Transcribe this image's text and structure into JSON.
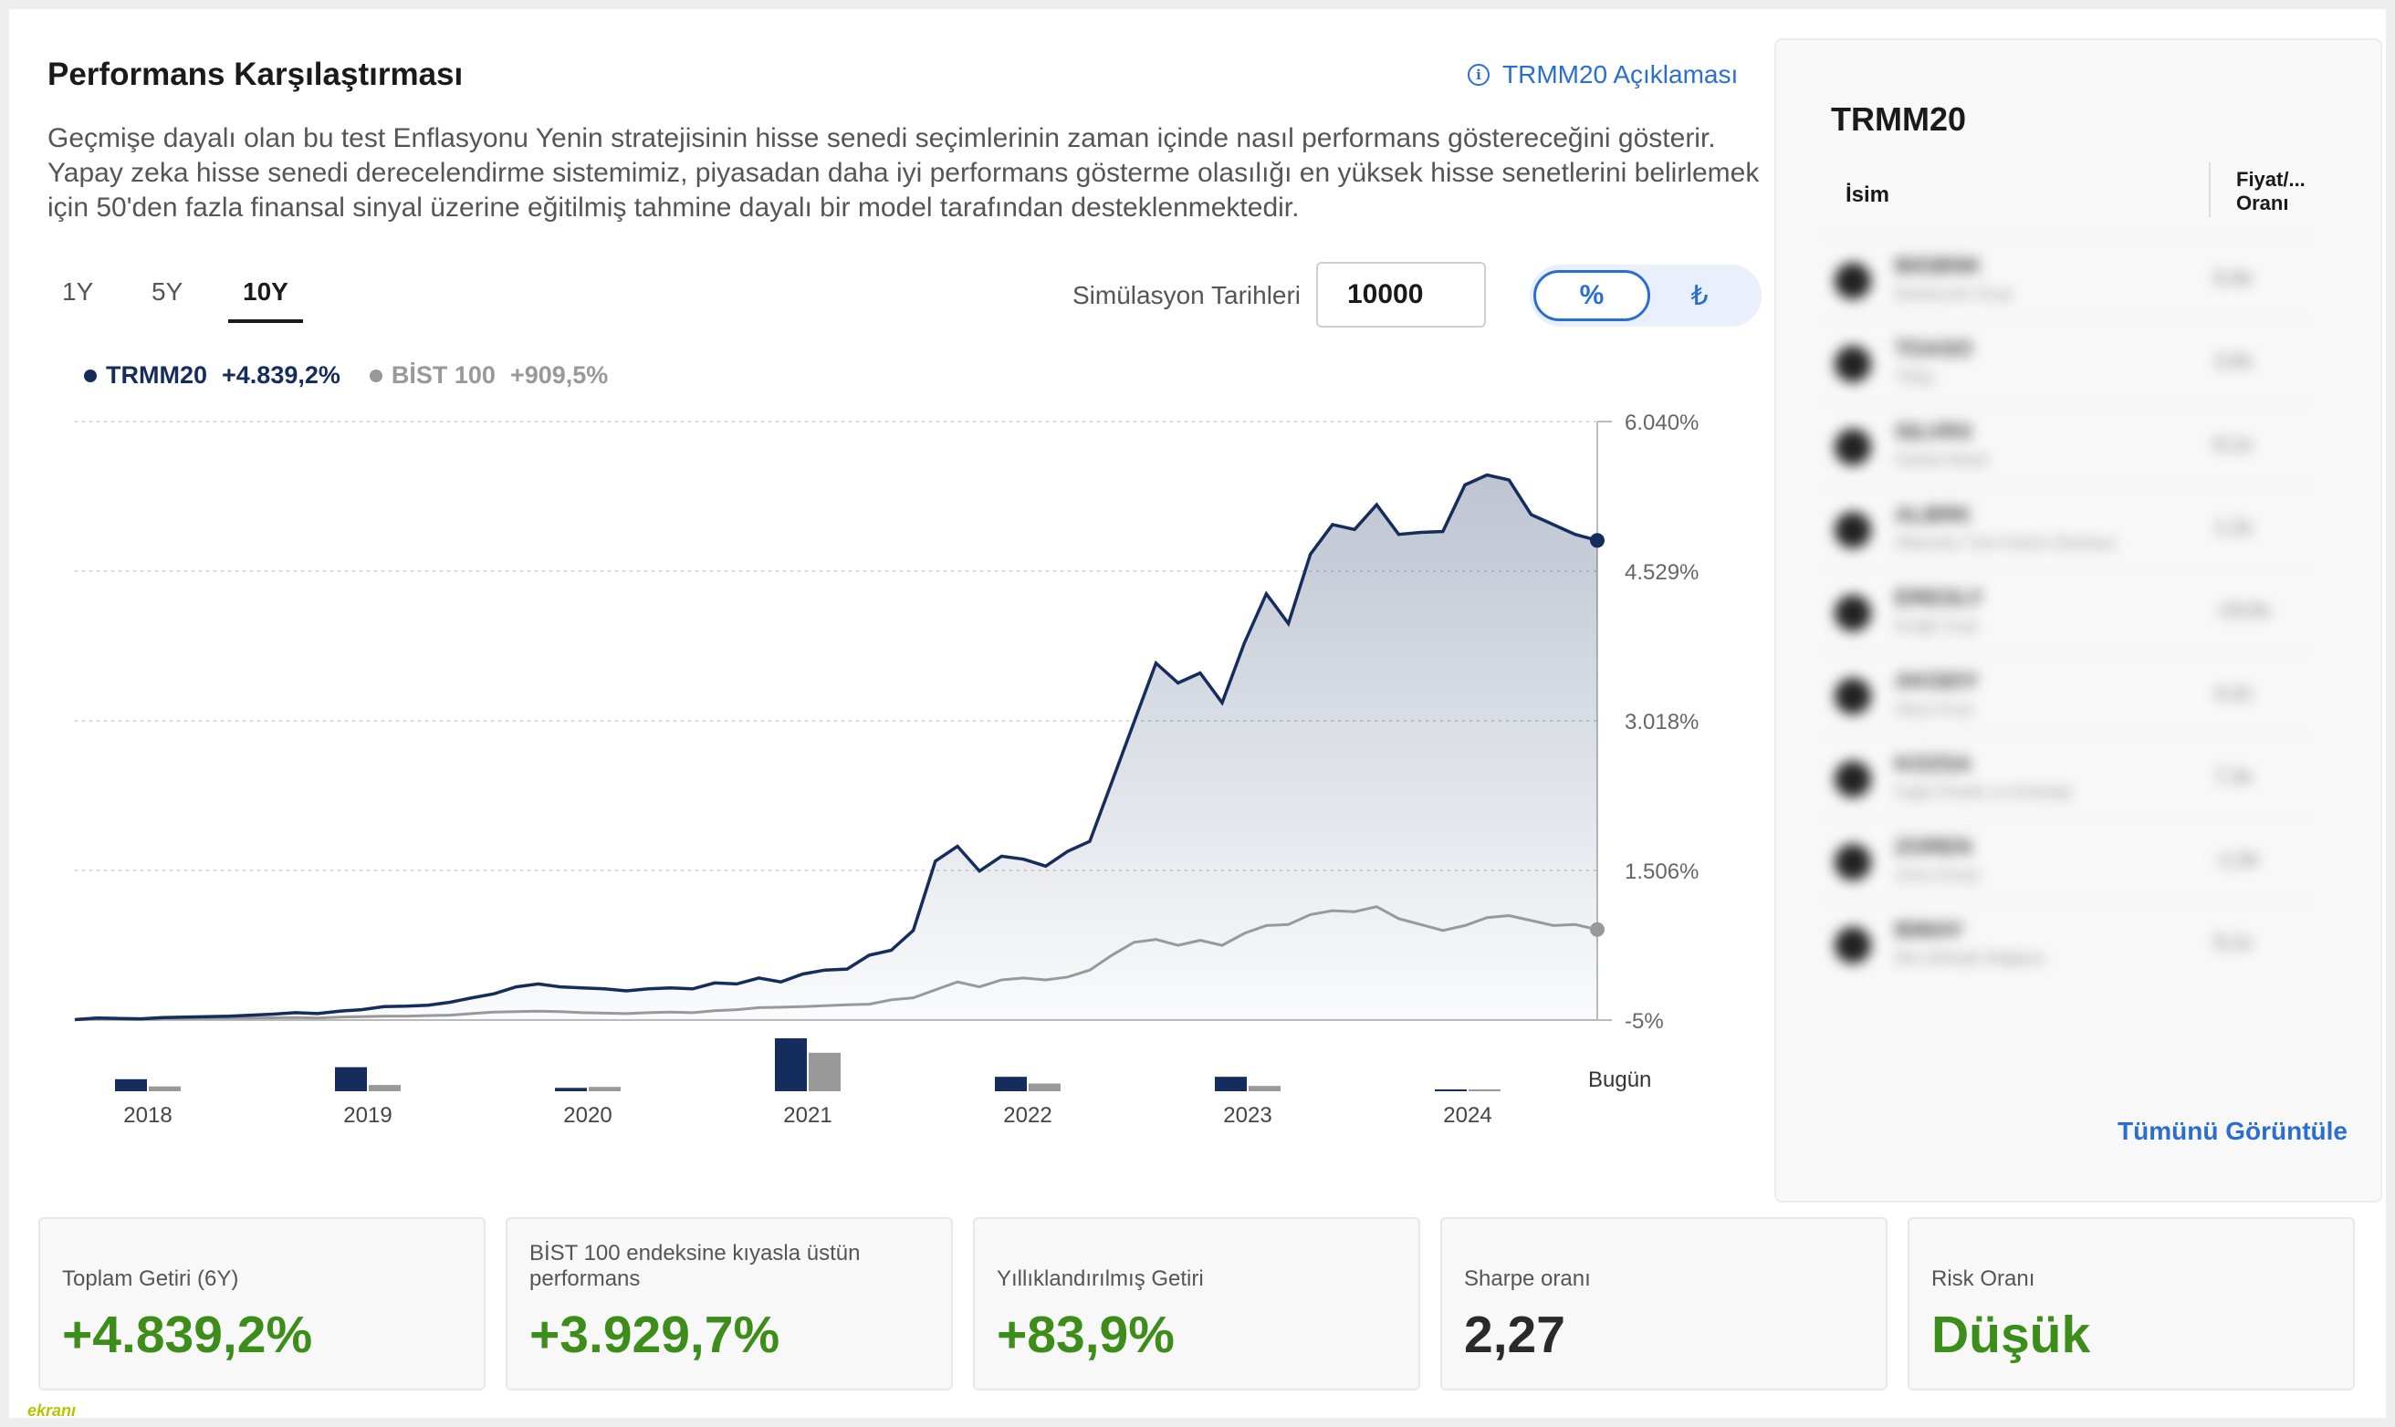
{
  "header": {
    "title": "Performans Karşılaştırması",
    "info_link": "TRMM20 Açıklaması",
    "description": "Geçmişe dayalı olan bu test Enflasyonu Yenin stratejisinin hisse senedi seçimlerinin zaman içinde nasıl performans göstereceğini gösterir. Yapay zeka hisse senedi derecelendirme sistemimiz, piyasadan daha iyi performans gösterme olasılığı en yüksek hisse senetlerini belirlemek için 50'den fazla finansal sinyal üzerine eğitilmiş tahmine dayalı bir model tarafından desteklenmektedir."
  },
  "controls": {
    "tabs": [
      "1Y",
      "5Y",
      "10Y"
    ],
    "active_tab": "10Y",
    "sim_label": "Simülasyon Tarihleri",
    "sim_value": "10000",
    "toggle": {
      "percent": "%",
      "lira": "₺",
      "selected": "%"
    }
  },
  "legend": {
    "series1_name": "TRMM20",
    "series1_value": "+4.839,2%",
    "series2_name": "BİST 100",
    "series2_value": "+909,5%"
  },
  "chart_data": {
    "type": "line",
    "y_tick_labels": [
      "6.040%",
      "4.529%",
      "3.018%",
      "1.506%",
      "-5%"
    ],
    "ylim": [
      -5,
      6040
    ],
    "x_end_label": "Bugün",
    "grid": true,
    "series": [
      {
        "name": "TRMM20",
        "color": "#152d5c",
        "end_value": 4839.2,
        "values": [
          0,
          15,
          12,
          8,
          20,
          25,
          30,
          35,
          45,
          55,
          70,
          60,
          85,
          100,
          130,
          135,
          145,
          175,
          220,
          260,
          330,
          360,
          330,
          320,
          310,
          290,
          310,
          320,
          310,
          370,
          360,
          420,
          380,
          460,
          500,
          510,
          650,
          700,
          900,
          1600,
          1750,
          1500,
          1650,
          1620,
          1550,
          1700,
          1800,
          2400,
          3000,
          3600,
          3400,
          3500,
          3200,
          3800,
          4300,
          4000,
          4700,
          5000,
          4950,
          5200,
          4900,
          4920,
          4930,
          5400,
          5500,
          5450,
          5100,
          5000,
          4900,
          4839.2
        ]
      },
      {
        "name": "BİST 100",
        "color": "#999999",
        "end_value": 909.5,
        "values": [
          0,
          8,
          5,
          3,
          10,
          12,
          12,
          14,
          15,
          18,
          20,
          15,
          25,
          30,
          35,
          35,
          40,
          45,
          60,
          75,
          80,
          85,
          80,
          70,
          65,
          60,
          70,
          75,
          70,
          90,
          100,
          120,
          125,
          130,
          140,
          150,
          155,
          200,
          220,
          300,
          380,
          330,
          400,
          420,
          400,
          430,
          500,
          650,
          780,
          810,
          750,
          800,
          750,
          870,
          950,
          960,
          1060,
          1100,
          1090,
          1140,
          1020,
          960,
          900,
          950,
          1030,
          1050,
          1000,
          950,
          960,
          909.5
        ]
      }
    ],
    "yearly_bars": {
      "categories": [
        "2018",
        "2019",
        "2020",
        "2021",
        "2022",
        "2023",
        "2024"
      ],
      "series": [
        {
          "name": "TRMM20",
          "color": "#152d5c",
          "values": [
            125,
            250,
            35,
            550,
            150,
            150,
            8
          ]
        },
        {
          "name": "BİST 100",
          "color": "#999999",
          "values": [
            50,
            65,
            45,
            400,
            80,
            55,
            3
          ]
        }
      ]
    }
  },
  "sidebar": {
    "title": "TRMM20",
    "col_name": "İsim",
    "col_pe_1": "Fiyat/...",
    "col_pe_2": "Oranı",
    "view_all": "Tümünü Görüntüle",
    "rows": [
      {
        "ticker": "BIGBNK",
        "name": "Bankacılık Grup",
        "pe": "6,9x"
      },
      {
        "ticker": "TOASO",
        "name": "Tofaş",
        "pe": "3,9x"
      },
      {
        "ticker": "SILVRX",
        "name": "Global Metal",
        "pe": "8,1x"
      },
      {
        "ticker": "ALBRK",
        "name": "Albaraka Türk Katılım Bankası",
        "pe": "1,2x"
      },
      {
        "ticker": "EREGLY",
        "name": "Ereğli Grup",
        "pe": "-19,0x"
      },
      {
        "ticker": "AKGEIY",
        "name": "Akça Grup",
        "pe": "4,2x"
      },
      {
        "ticker": "KOZSA",
        "name": "Kağıt Plastik ve Ambalaj",
        "pe": "7,3x"
      },
      {
        "ticker": "ZOREN",
        "name": "Zorlu Enerji",
        "pe": "-1,0x"
      },
      {
        "ticker": "BIMAY",
        "name": "Bim Birleşik Mağaza",
        "pe": "9,1x"
      }
    ]
  },
  "stats": [
    {
      "label": "Toplam Getiri (6Y)",
      "value": "+4.839,2%",
      "color": "green"
    },
    {
      "label": "BİST 100 endeksine kıyasla üstün performans",
      "value": "+3.929,7%",
      "color": "green"
    },
    {
      "label": "Yıllıklandırılmış Getiri",
      "value": "+83,9%",
      "color": "green"
    },
    {
      "label": "Sharpe oranı",
      "value": "2,27",
      "color": "dark"
    },
    {
      "label": "Risk Oranı",
      "value": "Düşük",
      "color": "green"
    }
  ],
  "watermark": "ekranı"
}
